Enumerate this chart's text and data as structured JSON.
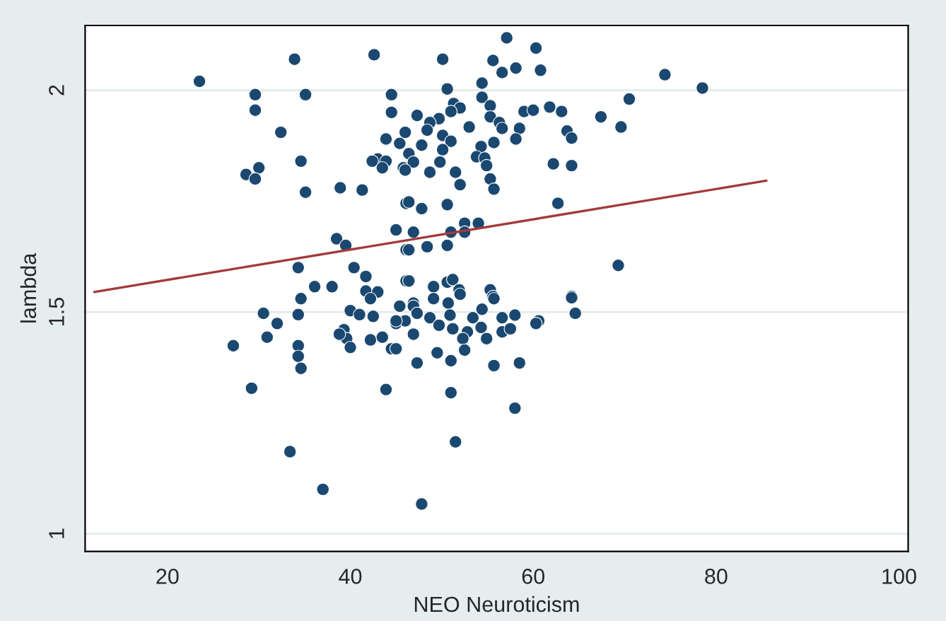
{
  "chart_data": {
    "type": "scatter",
    "xlabel": "NEO Neuroticism",
    "ylabel": "lambda",
    "xlim": [
      11,
      101
    ],
    "ylim": [
      0.96,
      2.146
    ],
    "xticks": [
      20,
      40,
      60,
      80,
      100
    ],
    "yticks": [
      1,
      1.5,
      2
    ],
    "grid": "y",
    "series": [
      {
        "marker": "circle",
        "color": "#1a4870",
        "x": [
          23.5,
          33.9,
          42.6,
          29.6,
          35.1,
          44.5,
          29.6,
          44.5,
          32.4,
          43.9,
          45.4,
          46,
          34.6,
          43,
          42.4,
          43.9,
          43.5,
          45.8,
          28.6,
          30,
          29.6,
          35.1,
          38.9,
          41.3,
          46.1,
          45,
          38.5,
          39.5,
          46.1,
          34.3,
          40.4,
          41.7,
          46.1,
          36.1,
          38,
          34.6,
          41.7,
          43,
          42.2,
          30.5,
          34.3,
          40,
          41,
          42.5,
          45.4,
          32,
          45,
          39.3,
          39.6,
          38.8,
          30.9,
          42.2,
          43.5,
          27.2,
          34.3,
          40,
          44.5,
          34.3,
          34.6,
          29.2,
          43.9,
          33.4,
          37,
          57.1,
          50.1,
          60.3,
          55.6,
          56.6,
          58.1,
          60.8,
          74.4,
          50.6,
          54.4,
          54.4,
          55.3,
          51.3,
          52,
          51,
          47.3,
          61.8,
          63.1,
          59,
          60,
          70.5,
          67.4,
          69.6,
          55.3,
          56.3,
          56.6,
          58.5,
          49.7,
          48.7,
          48.4,
          53,
          50.1,
          51,
          63.7,
          64.2,
          58.1,
          55.7,
          47.8,
          54.3,
          46.4,
          50.1,
          53.8,
          54.7,
          49.8,
          46.9,
          54.9,
          46,
          48.7,
          51.5,
          62.2,
          64.2,
          55.3,
          52,
          55.7,
          46.4,
          47.8,
          50.6,
          62.7,
          46.9,
          52.5,
          54,
          52.5,
          51,
          46.4,
          48.4,
          50.6,
          69.3,
          46.4,
          49.1,
          50.6,
          51.2,
          51.9,
          52,
          55.3,
          55.6,
          49.1,
          50.7,
          64.2,
          46.9,
          55.7,
          46.9,
          47.3,
          46,
          45,
          48.7,
          49.7,
          50.9,
          51.2,
          53.4,
          54.4,
          54.3,
          52.8,
          52.3,
          54.9,
          56.6,
          56.6,
          57.5,
          58,
          60.6,
          60.3,
          64.2,
          64.6,
          46.9,
          45,
          52.5,
          49.5,
          47.3,
          51,
          55.7,
          58.5,
          51,
          58,
          51.5,
          47.8,
          78.5
        ],
        "values": [
          2.02,
          2.07,
          2.08,
          1.99,
          1.99,
          1.99,
          1.955,
          1.95,
          1.905,
          1.89,
          1.88,
          1.905,
          1.84,
          1.845,
          1.84,
          1.84,
          1.825,
          1.825,
          1.81,
          1.825,
          1.8,
          1.77,
          1.78,
          1.775,
          1.745,
          1.685,
          1.665,
          1.65,
          1.64,
          1.6,
          1.6,
          1.58,
          1.57,
          1.557,
          1.557,
          1.53,
          1.547,
          1.545,
          1.53,
          1.497,
          1.494,
          1.503,
          1.494,
          1.49,
          1.513,
          1.474,
          1.474,
          1.46,
          1.44,
          1.45,
          1.443,
          1.437,
          1.443,
          1.424,
          1.424,
          1.42,
          1.417,
          1.4,
          1.373,
          1.328,
          1.325,
          1.185,
          1.1,
          2.118,
          2.07,
          2.095,
          2.067,
          2.04,
          2.05,
          2.045,
          2.035,
          2.003,
          2.016,
          1.984,
          1.965,
          1.97,
          1.96,
          1.952,
          1.943,
          1.962,
          1.952,
          1.952,
          1.955,
          1.98,
          1.94,
          1.917,
          1.94,
          1.927,
          1.914,
          1.914,
          1.936,
          1.927,
          1.91,
          1.917,
          1.898,
          1.885,
          1.908,
          1.892,
          1.89,
          1.882,
          1.876,
          1.873,
          1.857,
          1.866,
          1.85,
          1.847,
          1.838,
          1.838,
          1.83,
          1.82,
          1.815,
          1.815,
          1.834,
          1.83,
          1.8,
          1.787,
          1.777,
          1.748,
          1.733,
          1.742,
          1.745,
          1.68,
          1.7,
          1.7,
          1.68,
          1.68,
          1.64,
          1.647,
          1.65,
          1.605,
          1.57,
          1.557,
          1.567,
          1.573,
          1.55,
          1.54,
          1.55,
          1.535,
          1.53,
          1.52,
          1.535,
          1.52,
          1.53,
          1.513,
          1.497,
          1.48,
          1.48,
          1.487,
          1.47,
          1.493,
          1.462,
          1.487,
          1.506,
          1.465,
          1.455,
          1.44,
          1.44,
          1.487,
          1.455,
          1.462,
          1.493,
          1.48,
          1.474,
          1.532,
          1.497,
          1.45,
          1.417,
          1.414,
          1.408,
          1.385,
          1.39,
          1.379,
          1.385,
          1.318,
          1.283,
          1.207,
          1.067,
          2.005
        ]
      },
      {
        "type": "line",
        "color": "#a33a3a",
        "x": [
          12,
          85.5
        ],
        "values": [
          1.545,
          1.796
        ]
      }
    ]
  }
}
